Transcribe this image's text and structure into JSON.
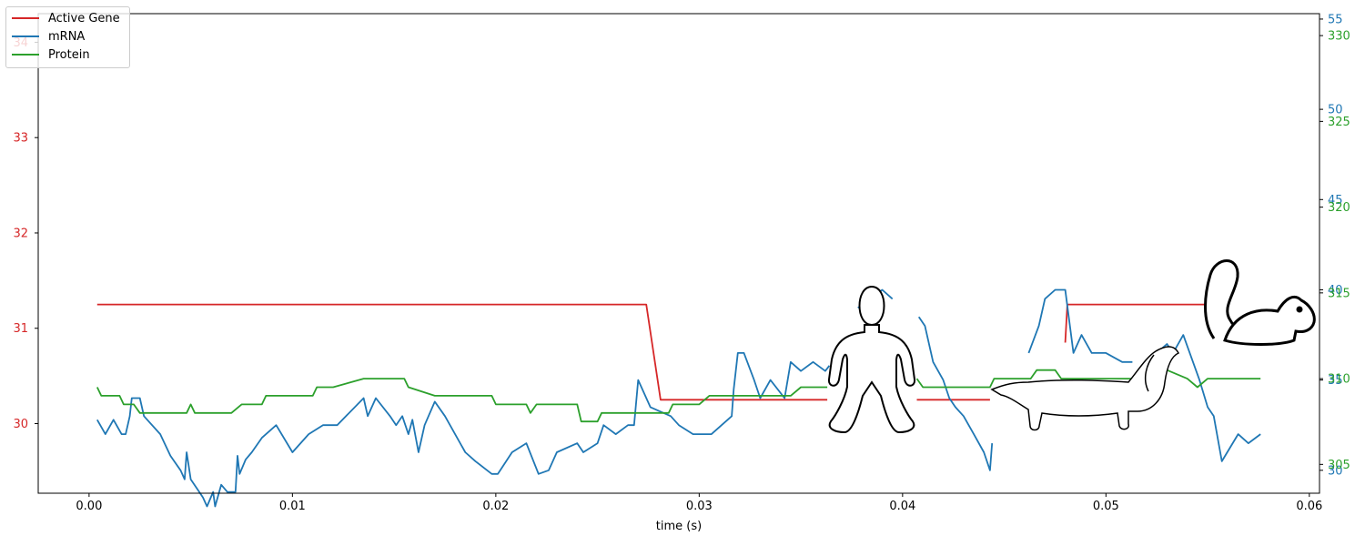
{
  "chart_data": {
    "type": "line",
    "xlabel": "time (s)",
    "xlim": [
      -0.0025,
      0.0605
    ],
    "x_ticks": [
      0.0,
      0.01,
      0.02,
      0.03,
      0.04,
      0.05,
      0.06
    ],
    "x_tick_labels": [
      "0.00",
      "0.01",
      "0.02",
      "0.03",
      "0.04",
      "0.05",
      "0.06"
    ],
    "grid": false,
    "legend_position": "top-left",
    "axes": {
      "gene": {
        "side": "left",
        "color": "#d62728",
        "ylim": [
          29.27,
          34.3
        ],
        "ticks": [
          30,
          31,
          32,
          33,
          34
        ],
        "tick_labels": [
          "30",
          "31",
          "32",
          "33",
          "34"
        ]
      },
      "mrna": {
        "side": "right",
        "color": "#1f77b4",
        "ylim": [
          28.73,
          55.3
        ],
        "ticks": [
          30,
          35,
          40,
          45,
          50,
          55
        ],
        "tick_labels": [
          "30",
          "35",
          "40",
          "45",
          "50",
          "55"
        ]
      },
      "protein": {
        "side": "right",
        "color": "#2ca02c",
        "ylim": [
          303.32,
          331.28
        ],
        "ticks": [
          305,
          310,
          315,
          320,
          325,
          330
        ],
        "tick_labels": [
          "305",
          "310",
          "315",
          "320",
          "325",
          "330"
        ]
      }
    },
    "series": [
      {
        "name": "Active Gene",
        "axis": "gene",
        "color": "#d62728",
        "segments": [
          [
            [
              0.0004,
              31.25
            ],
            [
              0.0274,
              31.25
            ],
            [
              0.0281,
              30.25
            ],
            [
              0.0363,
              30.25
            ]
          ],
          [
            [
              0.0407,
              30.25
            ],
            [
              0.0443,
              30.25
            ]
          ],
          [
            [
              0.048,
              30.85
            ],
            [
              0.0481,
              31.25
            ],
            [
              0.055,
              31.25
            ]
          ]
        ]
      },
      {
        "name": "mRNA",
        "axis": "mrna",
        "color": "#1f77b4",
        "segments": [
          [
            [
              0.0004,
              32.8
            ],
            [
              0.0008,
              32.0
            ],
            [
              0.0012,
              32.8
            ],
            [
              0.0016,
              32.0
            ],
            [
              0.0018,
              32.0
            ],
            [
              0.002,
              33.0
            ],
            [
              0.0021,
              34.0
            ],
            [
              0.0025,
              34.0
            ],
            [
              0.0027,
              33.0
            ],
            [
              0.0035,
              32.0
            ],
            [
              0.004,
              30.8
            ],
            [
              0.0045,
              30.0
            ],
            [
              0.0047,
              29.5
            ],
            [
              0.0048,
              31.0
            ],
            [
              0.005,
              29.5
            ],
            [
              0.0053,
              29.0
            ],
            [
              0.0056,
              28.5
            ],
            [
              0.0058,
              28.0
            ],
            [
              0.0061,
              28.8
            ],
            [
              0.0062,
              28.0
            ],
            [
              0.0065,
              29.2
            ],
            [
              0.0068,
              28.8
            ],
            [
              0.0072,
              28.8
            ],
            [
              0.0073,
              30.8
            ],
            [
              0.0074,
              29.8
            ],
            [
              0.0077,
              30.6
            ],
            [
              0.008,
              31.0
            ],
            [
              0.0085,
              31.8
            ],
            [
              0.0092,
              32.5
            ],
            [
              0.01,
              31.0
            ],
            [
              0.0108,
              32.0
            ],
            [
              0.0115,
              32.5
            ],
            [
              0.0122,
              32.5
            ],
            [
              0.0135,
              34.0
            ],
            [
              0.0137,
              33.0
            ],
            [
              0.0141,
              34.0
            ],
            [
              0.0148,
              33.0
            ],
            [
              0.0151,
              32.5
            ],
            [
              0.0154,
              33.0
            ],
            [
              0.0157,
              32.0
            ],
            [
              0.0159,
              32.8
            ],
            [
              0.0162,
              31.0
            ],
            [
              0.0165,
              32.5
            ],
            [
              0.017,
              33.8
            ],
            [
              0.0175,
              33.0
            ],
            [
              0.0185,
              31.0
            ],
            [
              0.019,
              30.5
            ],
            [
              0.0198,
              29.8
            ],
            [
              0.0201,
              29.8
            ],
            [
              0.0208,
              31.0
            ],
            [
              0.0215,
              31.5
            ],
            [
              0.0221,
              29.8
            ],
            [
              0.0226,
              30.0
            ],
            [
              0.023,
              31.0
            ],
            [
              0.024,
              31.5
            ],
            [
              0.0243,
              31.0
            ],
            [
              0.025,
              31.5
            ],
            [
              0.0253,
              32.5
            ],
            [
              0.0259,
              32.0
            ],
            [
              0.0265,
              32.5
            ],
            [
              0.0268,
              32.5
            ],
            [
              0.027,
              35.0
            ],
            [
              0.0276,
              33.5
            ],
            [
              0.0286,
              33.0
            ],
            [
              0.029,
              32.5
            ],
            [
              0.0297,
              32.0
            ],
            [
              0.0306,
              32.0
            ],
            [
              0.0316,
              33.0
            ],
            [
              0.0317,
              34.5
            ],
            [
              0.0319,
              36.5
            ],
            [
              0.0322,
              36.5
            ],
            [
              0.0327,
              35.0
            ],
            [
              0.033,
              34.0
            ],
            [
              0.0335,
              35.0
            ],
            [
              0.0342,
              34.0
            ],
            [
              0.0345,
              36.0
            ],
            [
              0.035,
              35.5
            ],
            [
              0.0356,
              36.0
            ],
            [
              0.0362,
              35.5
            ],
            [
              0.0364,
              35.8
            ]
          ],
          [
            [
              0.0378,
              39.0
            ],
            [
              0.039,
              40.0
            ],
            [
              0.0395,
              39.5
            ]
          ],
          [
            [
              0.0408,
              38.5
            ],
            [
              0.0411,
              38.0
            ],
            [
              0.0415,
              36.0
            ],
            [
              0.042,
              35.0
            ],
            [
              0.0423,
              34.0
            ],
            [
              0.0426,
              33.5
            ],
            [
              0.043,
              33.0
            ],
            [
              0.0435,
              32.0
            ],
            [
              0.044,
              31.0
            ],
            [
              0.0443,
              30.0
            ],
            [
              0.0444,
              31.5
            ]
          ],
          [
            [
              0.0462,
              36.5
            ],
            [
              0.0467,
              38.0
            ],
            [
              0.047,
              39.5
            ],
            [
              0.0475,
              40.0
            ],
            [
              0.048,
              40.0
            ],
            [
              0.0484,
              36.5
            ],
            [
              0.0488,
              37.5
            ],
            [
              0.0493,
              36.5
            ],
            [
              0.05,
              36.5
            ],
            [
              0.0508,
              36.0
            ],
            [
              0.0513,
              36.0
            ]
          ],
          [
            [
              0.0525,
              36.5
            ],
            [
              0.053,
              37.0
            ],
            [
              0.0533,
              36.5
            ],
            [
              0.0538,
              37.5
            ],
            [
              0.0546,
              35.0
            ],
            [
              0.055,
              33.5
            ],
            [
              0.0553,
              33.0
            ],
            [
              0.0557,
              30.5
            ],
            [
              0.0565,
              32.0
            ],
            [
              0.057,
              31.5
            ],
            [
              0.0576,
              32.0
            ]
          ]
        ]
      },
      {
        "name": "Protein",
        "axis": "protein",
        "color": "#2ca02c",
        "segments": [
          [
            [
              0.0004,
              309.5
            ],
            [
              0.0006,
              309.0
            ],
            [
              0.0015,
              309.0
            ],
            [
              0.0017,
              308.5
            ],
            [
              0.0022,
              308.5
            ],
            [
              0.0025,
              308.0
            ],
            [
              0.0048,
              308.0
            ],
            [
              0.005,
              308.5
            ],
            [
              0.0052,
              308.0
            ],
            [
              0.007,
              308.0
            ],
            [
              0.0075,
              308.5
            ],
            [
              0.0085,
              308.5
            ],
            [
              0.0087,
              309.0
            ],
            [
              0.011,
              309.0
            ],
            [
              0.0112,
              309.5
            ],
            [
              0.012,
              309.5
            ],
            [
              0.0135,
              310.0
            ],
            [
              0.0155,
              310.0
            ],
            [
              0.0157,
              309.5
            ],
            [
              0.017,
              309.0
            ],
            [
              0.0198,
              309.0
            ],
            [
              0.02,
              308.5
            ],
            [
              0.0215,
              308.5
            ],
            [
              0.0217,
              308.0
            ],
            [
              0.022,
              308.5
            ],
            [
              0.024,
              308.5
            ],
            [
              0.0242,
              307.5
            ],
            [
              0.025,
              307.5
            ],
            [
              0.0252,
              308.0
            ],
            [
              0.0285,
              308.0
            ],
            [
              0.0287,
              308.5
            ],
            [
              0.03,
              308.5
            ],
            [
              0.0305,
              309.0
            ],
            [
              0.0345,
              309.0
            ],
            [
              0.035,
              309.5
            ],
            [
              0.0363,
              309.5
            ]
          ],
          [
            [
              0.0407,
              310.0
            ],
            [
              0.041,
              309.5
            ],
            [
              0.0443,
              309.5
            ],
            [
              0.0445,
              310.0
            ],
            [
              0.0463,
              310.0
            ],
            [
              0.0466,
              310.5
            ],
            [
              0.0475,
              310.5
            ],
            [
              0.0478,
              310.0
            ],
            [
              0.052,
              310.0
            ],
            [
              0.0522,
              310.5
            ],
            [
              0.053,
              310.5
            ],
            [
              0.054,
              310.0
            ],
            [
              0.0545,
              309.5
            ],
            [
              0.055,
              310.0
            ],
            [
              0.0576,
              310.0
            ]
          ]
        ]
      }
    ]
  },
  "illustrations": {
    "person": "person-outline-icon",
    "dog": "dachshund-drawing",
    "squirrel": "squirrel-drawing"
  }
}
